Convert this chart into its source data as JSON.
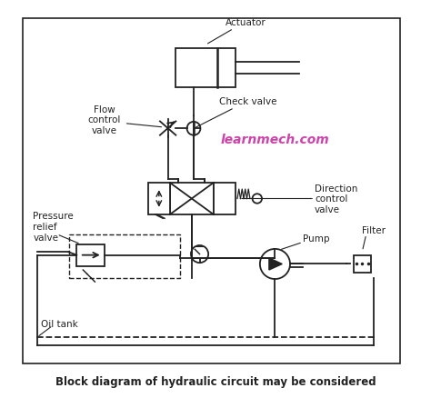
{
  "title": "Block diagram of hydraulic circuit may be considered",
  "watermark": "learnmech.com",
  "watermark_color": "#cc44aa",
  "bg_color": "#ffffff",
  "border_color": "#333333",
  "line_color": "#222222",
  "labels": {
    "actuator": "Actuator",
    "check_valve": "Check valve",
    "flow_control_valve": "Flow\ncontrol\nvalve",
    "direction_control_valve": "Direction\ncontrol\nvalve",
    "pressure_relief_valve": "Pressure\nrelief\nvalve",
    "pump": "Pump",
    "filter": "Filter",
    "oil_tank": "Oil tank"
  },
  "figsize": [
    4.74,
    4.39
  ],
  "dpi": 100
}
